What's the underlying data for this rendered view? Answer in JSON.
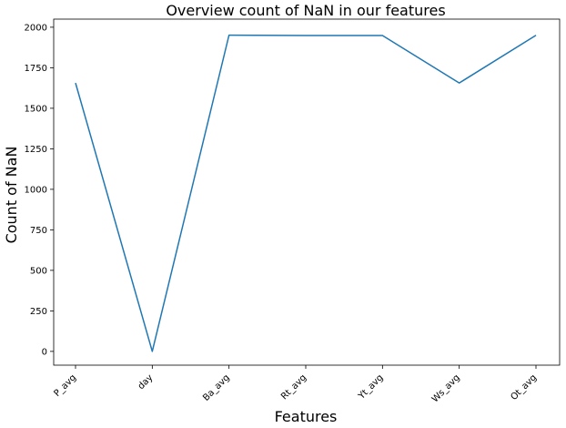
{
  "chart_data": {
    "type": "line",
    "title": "Overview count of NaN in our features",
    "xlabel": "Features",
    "ylabel": "Count of NaN",
    "categories": [
      "P_avg",
      "day",
      "Ba_avg",
      "Rt_avg",
      "Yt_avg",
      "Ws_avg",
      "Ot_avg"
    ],
    "series": [
      {
        "values": [
          1656,
          0,
          1951,
          1949,
          1949,
          1656,
          1950
        ]
      }
    ],
    "ylim": [
      -85,
      2050
    ],
    "yticks": [
      0,
      250,
      500,
      750,
      1000,
      1250,
      1500,
      1750,
      2000
    ],
    "ytick_labels": [
      "0",
      "250",
      "500",
      "750",
      "1000",
      "1250",
      "1500",
      "1750",
      "2000"
    ],
    "grid": false,
    "line_color": "#1f77b4"
  }
}
